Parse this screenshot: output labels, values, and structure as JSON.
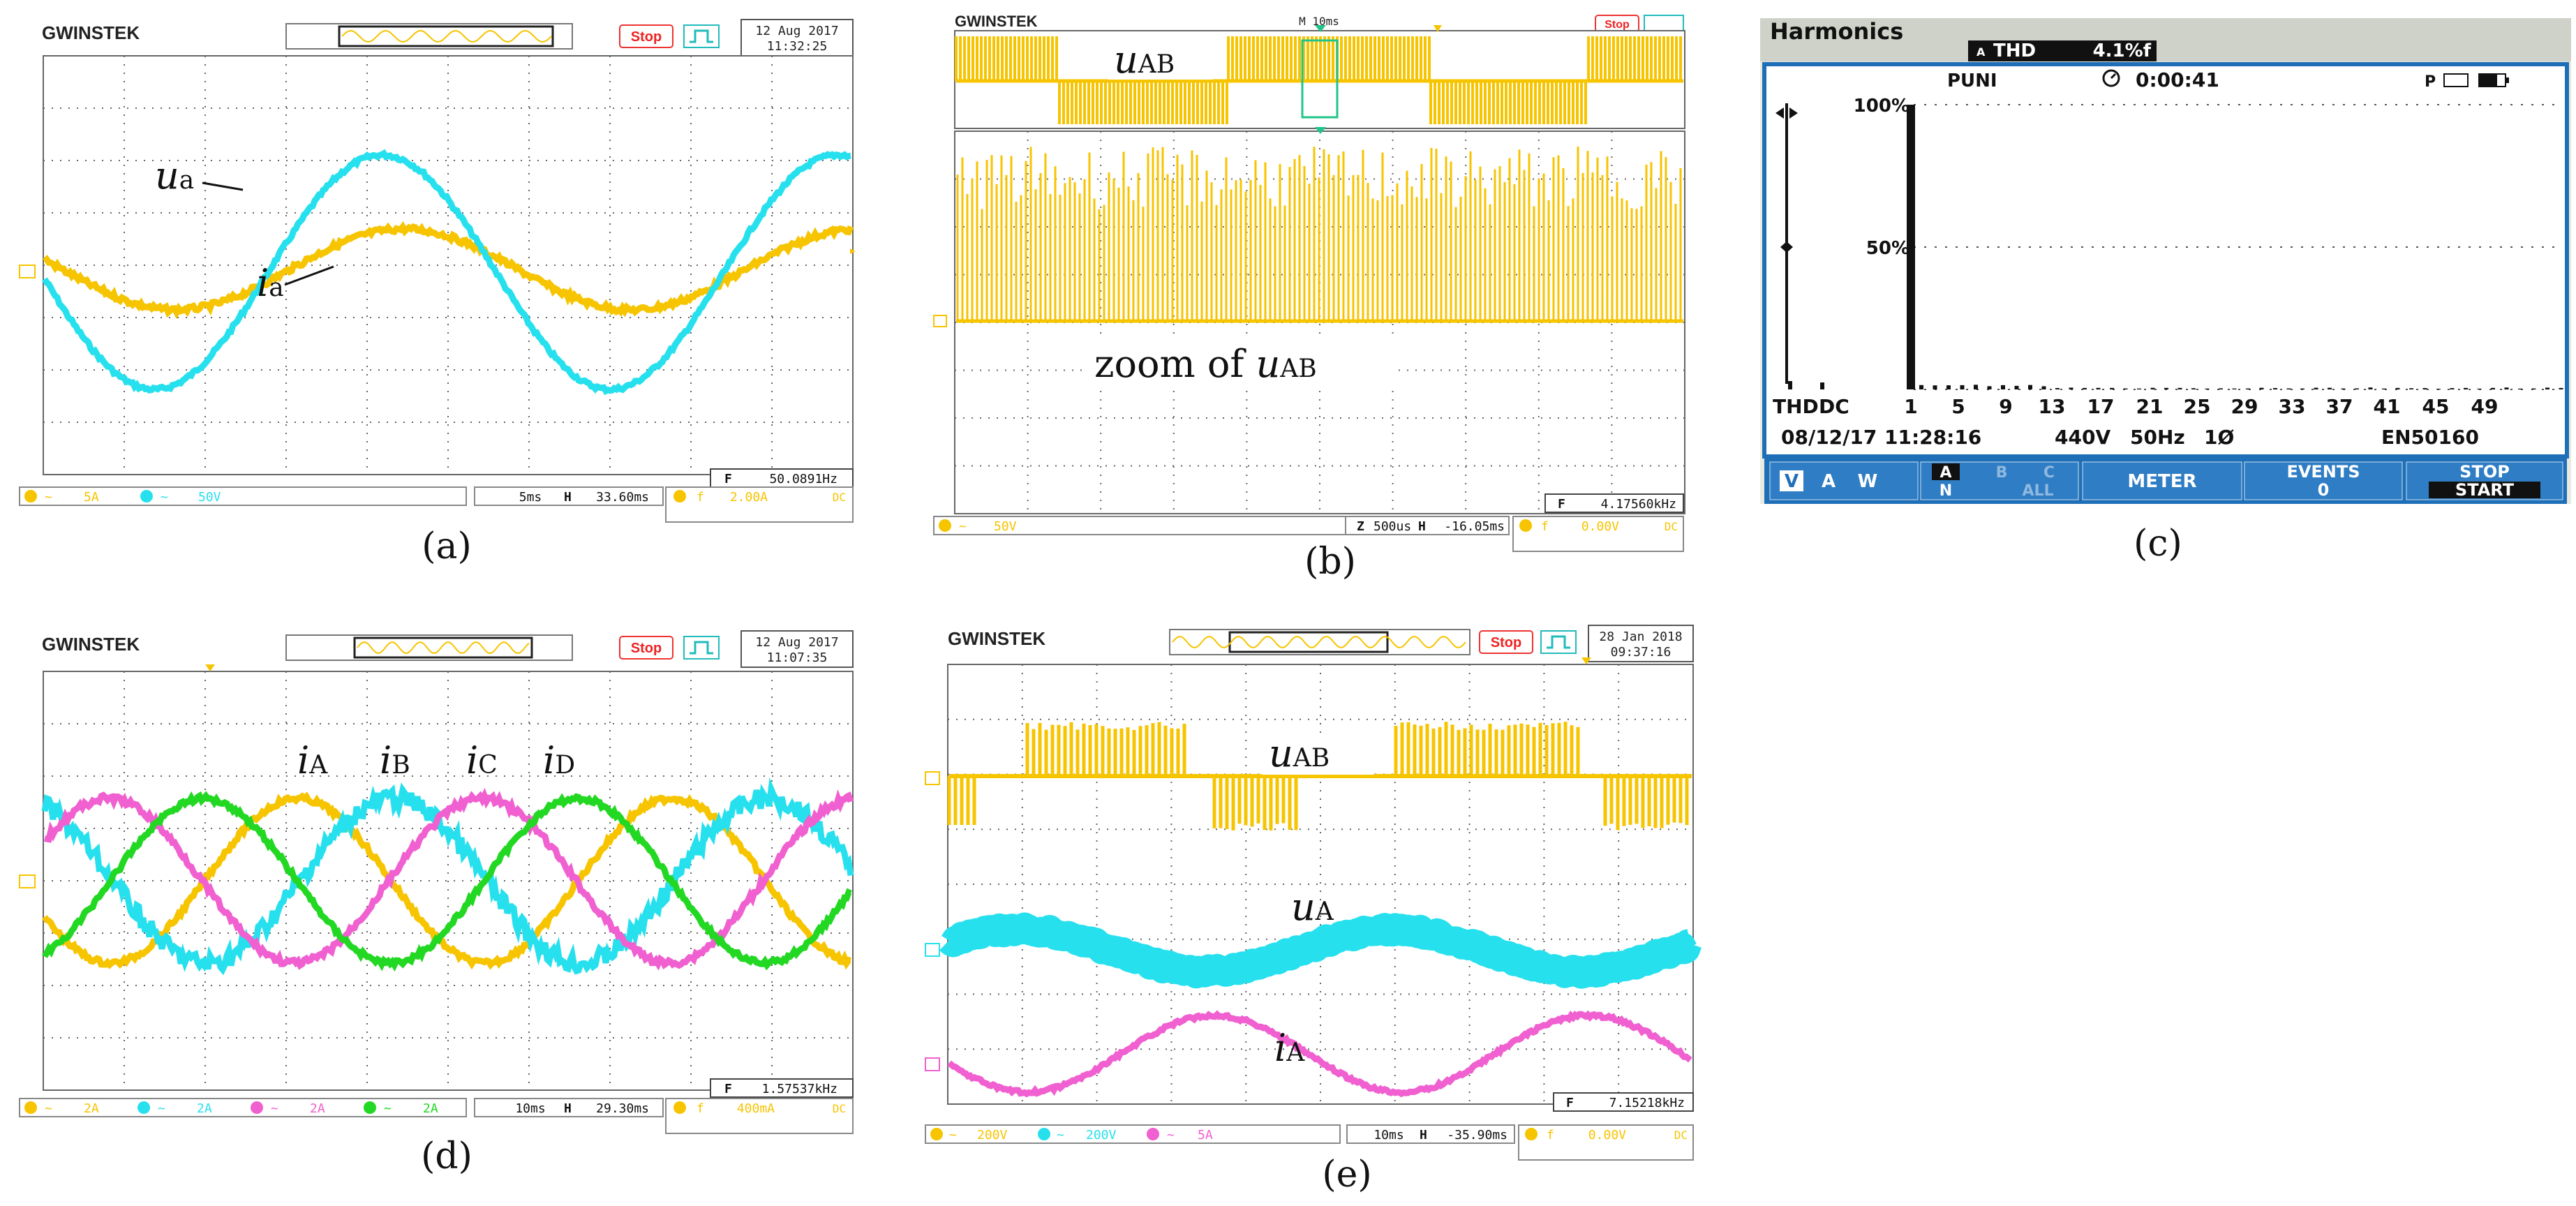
{
  "colors": {
    "yellow": "#F7C400",
    "cyan": "#27E0EE",
    "magenta": "#F060D0",
    "green": "#22D822",
    "grid": "#555555",
    "fluke_blue": "#1E6FB8",
    "fluke_panel": "#E9EAE0"
  },
  "panels": {
    "a": {
      "caption": "(a)",
      "brand": "GWINSTEK",
      "status": "Stop",
      "date": "12 Aug 2017",
      "time": "11:32:25",
      "freq_readout": "50.0891Hz",
      "timebase": "5ms",
      "hpos": "33.60ms",
      "trig_level": "2.00A",
      "trig_coupling": "DC",
      "ch1_scale": "5A",
      "ch2_scale": "50V",
      "label_u": "u",
      "label_u_sub": "a",
      "label_i": "i",
      "label_i_sub": "a"
    },
    "b": {
      "caption": "(b)",
      "brand": "GWINSTEK",
      "status": "Stop",
      "mode": "M 10ms",
      "freq_readout": "4.17560kHz",
      "timebase": "500us",
      "hpos": "-16.05ms",
      "trig_level": "0.00V",
      "trig_coupling": "DC",
      "ch1_scale": "50V",
      "label_u": "u",
      "label_u_sub": "AB",
      "zoom_prefix": "zoom of ",
      "zoom_u": "u",
      "zoom_u_sub": "AB"
    },
    "c": {
      "caption": "(c)",
      "title": "Harmonics",
      "thd_label": "THD",
      "thd_value": "4.1%f",
      "mode": "PUNI",
      "timer": "0:00:41",
      "y_labels": [
        "100%",
        "50%"
      ],
      "x_prefix": "THD",
      "x_dc": "DC",
      "x_labels": [
        "1",
        "5",
        "9",
        "13",
        "17",
        "21",
        "25",
        "29",
        "33",
        "37",
        "41",
        "45",
        "49"
      ],
      "date": "08/12/17",
      "time": "11:28:16",
      "voltage": "440V",
      "freq": "50Hz",
      "phase": "1Ø",
      "standard": "EN50160",
      "softkeys": {
        "vaw": [
          "V",
          "A",
          "W"
        ],
        "phase_top": [
          "A",
          "B",
          "C"
        ],
        "phase_bottom": [
          "N",
          "ALL"
        ],
        "meter": "METER",
        "events_label": "EVENTS",
        "events_count": "0",
        "stop": "STOP",
        "start": "START"
      }
    },
    "d": {
      "caption": "(d)",
      "brand": "GWINSTEK",
      "status": "Stop",
      "date": "12 Aug 2017",
      "time": "11:07:35",
      "freq_readout": "1.57537kHz",
      "timebase": "10ms",
      "hpos": "29.30ms",
      "trig_level": "400mA",
      "trig_coupling": "DC",
      "ch_scales": [
        "2A",
        "2A",
        "2A",
        "2A"
      ],
      "labels": [
        {
          "i": "i",
          "sub": "A"
        },
        {
          "i": "i",
          "sub": "B"
        },
        {
          "i": "i",
          "sub": "C"
        },
        {
          "i": "i",
          "sub": "D"
        }
      ]
    },
    "e": {
      "caption": "(e)",
      "brand": "GWINSTEK",
      "status": "Stop",
      "date": "28 Jan 2018",
      "time": "09:37:16",
      "freq_readout": "7.15218kHz",
      "timebase": "10ms",
      "hpos": "-35.90ms",
      "trig_level": "0.00V",
      "trig_coupling": "DC",
      "ch_scales": [
        "200V",
        "200V",
        "5A"
      ],
      "label_uab": "u",
      "label_uab_sub": "AB",
      "label_ua": "u",
      "label_ua_sub": "A",
      "label_ia": "i",
      "label_ia_sub": "A"
    }
  }
}
